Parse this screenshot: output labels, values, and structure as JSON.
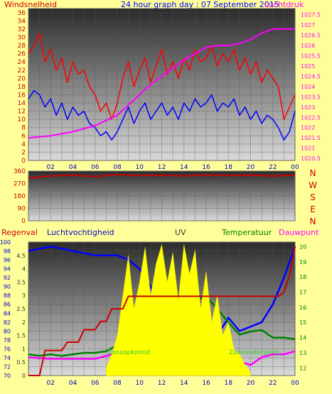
{
  "chart_data": [
    {
      "type": "line",
      "title": "24 hour graph day : 07 September 2015",
      "left_axis_label": "Windsnelheid",
      "right_axis_label": "Luchtdruk",
      "x_ticks": [
        "02",
        "04",
        "06",
        "08",
        "10",
        "12",
        "14",
        "16",
        "18",
        "20",
        "22",
        "00"
      ],
      "left_ticks": [
        "0",
        "2",
        "4",
        "6",
        "8",
        "10",
        "12",
        "14",
        "16",
        "18",
        "20",
        "22",
        "24",
        "26",
        "28",
        "30",
        "32",
        "34",
        "36"
      ],
      "right_ticks": [
        "1020.5",
        "1021",
        "1021.5",
        "1022",
        "1022.5",
        "1023",
        "1023.5",
        "1024",
        "1024.5",
        "1025",
        "1025.5",
        "1026",
        "1026.5",
        "1027",
        "1027.5"
      ],
      "ylim_left": [
        0,
        37
      ],
      "ylim_right": [
        1020.4,
        1027.8
      ],
      "xlim": [
        0,
        24
      ],
      "grid": true,
      "series": [
        {
          "axis": "left",
          "color": "#ff0000",
          "x": [
            0,
            0.5,
            1,
            1.5,
            2,
            2.5,
            3,
            3.5,
            4,
            4.5,
            5,
            5.5,
            6,
            6.5,
            7,
            7.5,
            8,
            8.5,
            9,
            9.5,
            10,
            10.5,
            11,
            11.5,
            12,
            12.5,
            13,
            13.5,
            14,
            14.5,
            15,
            15.5,
            16,
            16.5,
            17,
            17.5,
            18,
            18.5,
            19,
            19.5,
            20,
            20.5,
            21,
            21.5,
            22,
            22.5,
            23,
            23.5,
            24
          ],
          "values": [
            26,
            28,
            31,
            24,
            27,
            22,
            25,
            19,
            24,
            21,
            22,
            18,
            16,
            12,
            14,
            10,
            14,
            20,
            24,
            18,
            22,
            25,
            19,
            23,
            27,
            21,
            24,
            20,
            25,
            22,
            27,
            24,
            25,
            28,
            23,
            26,
            24,
            27,
            22,
            25,
            21,
            24,
            19,
            22,
            20,
            18,
            10,
            13,
            16
          ]
        },
        {
          "axis": "left",
          "color": "#0000ff",
          "x": [
            0,
            0.5,
            1,
            1.5,
            2,
            2.5,
            3,
            3.5,
            4,
            4.5,
            5,
            5.5,
            6,
            6.5,
            7,
            7.5,
            8,
            8.5,
            9,
            9.5,
            10,
            10.5,
            11,
            11.5,
            12,
            12.5,
            13,
            13.5,
            14,
            14.5,
            15,
            15.5,
            16,
            16.5,
            17,
            17.5,
            18,
            18.5,
            19,
            19.5,
            20,
            20.5,
            21,
            21.5,
            22,
            22.5,
            23,
            23.5,
            24
          ],
          "values": [
            15,
            17,
            16,
            13,
            15,
            11,
            14,
            10,
            13,
            11,
            12,
            9,
            8,
            6,
            7,
            5,
            7,
            10,
            13,
            9,
            12,
            14,
            10,
            12,
            14,
            11,
            13,
            10,
            14,
            12,
            15,
            13,
            14,
            16,
            12,
            14,
            13,
            15,
            11,
            13,
            10,
            12,
            9,
            11,
            10,
            8,
            5,
            7,
            12
          ]
        },
        {
          "axis": "right",
          "color": "#ff00ff",
          "x": [
            0,
            2,
            4,
            6,
            8,
            9,
            10,
            11,
            12,
            13,
            14,
            15,
            16,
            17,
            18,
            19,
            20,
            21,
            22,
            23,
            24
          ],
          "values": [
            1021.5,
            1021.6,
            1021.8,
            1022.1,
            1022.6,
            1023.1,
            1023.6,
            1024.1,
            1024.5,
            1024.9,
            1025.3,
            1025.6,
            1025.9,
            1026.0,
            1026.0,
            1026.1,
            1026.3,
            1026.6,
            1026.8,
            1026.8,
            1026.8
          ]
        }
      ]
    },
    {
      "type": "line",
      "left_ticks": [
        "0",
        "90",
        "180",
        "270",
        "360"
      ],
      "right_labels": [
        "N",
        "W",
        "S",
        "E",
        "N"
      ],
      "ylim": [
        0,
        360
      ],
      "xlim": [
        0,
        24
      ],
      "series": [
        {
          "color": "#cc0000",
          "x": [
            0,
            2,
            4,
            6,
            8,
            10,
            12,
            14,
            16,
            18,
            20,
            22,
            24
          ],
          "values": [
            310,
            325,
            330,
            320,
            335,
            328,
            330,
            325,
            332,
            328,
            330,
            325,
            330
          ]
        }
      ]
    },
    {
      "type": "line",
      "labels": [
        "Regenval",
        "Luchtvochtigheid",
        "UV",
        "Temperatuur",
        "Dauwpunt"
      ],
      "annotations": [
        "Zonsopkomst",
        "Zonsondergang"
      ],
      "humidity_ticks": [
        "70",
        "72",
        "74",
        "76",
        "78",
        "80",
        "82",
        "84",
        "86",
        "88",
        "90",
        "92",
        "94",
        "96",
        "98",
        "100"
      ],
      "uv_ticks": [
        "0",
        "0.5",
        "1",
        "1.5",
        "2",
        "2.5",
        "3",
        "3.5",
        "4",
        "4.5"
      ],
      "temperature_ticks": [
        "12",
        "13",
        "14",
        "15",
        "16",
        "17",
        "18",
        "19",
        "20"
      ],
      "x_ticks": [
        "02",
        "04",
        "06",
        "08",
        "10",
        "12",
        "14",
        "16",
        "18",
        "20",
        "22",
        "00"
      ],
      "xlim": [
        0,
        24
      ],
      "ylim_humidity": [
        70,
        100
      ],
      "ylim_uv": [
        0,
        5
      ],
      "ylim_temperature": [
        11.5,
        20.3
      ],
      "series": [
        {
          "name": "Luchtvochtigheid",
          "axis": "humidity",
          "color": "#0000ff",
          "x": [
            0,
            2,
            4,
            6,
            8,
            9,
            10,
            11,
            12,
            13,
            14,
            15,
            16,
            17,
            18,
            19,
            20,
            21,
            22,
            23,
            24
          ],
          "values": [
            98,
            99,
            98,
            97,
            97,
            96,
            94,
            90,
            84,
            80,
            77,
            74,
            76,
            79,
            83,
            80,
            81,
            82,
            86,
            92,
            99
          ]
        },
        {
          "name": "Temperatuur",
          "axis": "temperature",
          "color": "#008000",
          "x": [
            0,
            1,
            2,
            3,
            4,
            5,
            6,
            7,
            8,
            9,
            10,
            11,
            12,
            13,
            14,
            15,
            16,
            17,
            18,
            19,
            20,
            21,
            22,
            23,
            24
          ],
          "values": [
            12.9,
            12.8,
            12.9,
            12.8,
            12.9,
            13.0,
            13.0,
            13.1,
            13.5,
            14.2,
            15.0,
            15.8,
            16.4,
            16.0,
            16.8,
            16.5,
            16.7,
            15.9,
            15.0,
            14.2,
            14.4,
            14.5,
            14.0,
            14.0,
            13.9
          ]
        },
        {
          "name": "Dauwpunt",
          "axis": "temperature",
          "color": "#ff00ff",
          "x": [
            0,
            2,
            4,
            6,
            8,
            9,
            10,
            11,
            12,
            13,
            14,
            15,
            16,
            17,
            18,
            19,
            20,
            21,
            22,
            23,
            24
          ],
          "values": [
            12.7,
            12.6,
            12.6,
            12.6,
            13.0,
            13.4,
            13.7,
            13.3,
            13.5,
            12.9,
            13.7,
            13.5,
            13.2,
            12.8,
            12.3,
            12.4,
            12.2,
            12.7,
            12.9,
            12.9,
            13.1
          ]
        },
        {
          "name": "UV",
          "axis": "uv",
          "color": "#ffff00",
          "x": [
            7,
            7.5,
            8,
            8.5,
            9,
            9.5,
            10,
            10.5,
            11,
            11.5,
            12,
            12.5,
            13,
            13.5,
            14,
            14.5,
            15,
            15.5,
            16,
            16.5,
            17,
            17.5,
            18,
            18.5,
            19,
            19.5,
            20
          ],
          "values": [
            0.3,
            0.8,
            1.5,
            3.0,
            4.5,
            2.5,
            3.5,
            4.8,
            3.0,
            4.2,
            4.9,
            3.5,
            4.6,
            2.8,
            4.9,
            3.8,
            4.7,
            2.5,
            3.9,
            2.0,
            3.0,
            1.5,
            2.0,
            1.0,
            0.8,
            0.4,
            0.1
          ]
        },
        {
          "name": "Regenval",
          "axis": "rain",
          "color": "#cc0000",
          "x": [
            0,
            1,
            1.5,
            3,
            3.5,
            4.5,
            5,
            6,
            6.5,
            7,
            7.5,
            8.5,
            9,
            22.5,
            23,
            23.5,
            24
          ],
          "values": [
            0,
            0,
            0.3,
            0.3,
            0.4,
            0.4,
            0.55,
            0.55,
            0.65,
            0.65,
            0.8,
            0.8,
            0.95,
            0.95,
            1.0,
            1.2,
            1.55
          ]
        }
      ]
    }
  ]
}
